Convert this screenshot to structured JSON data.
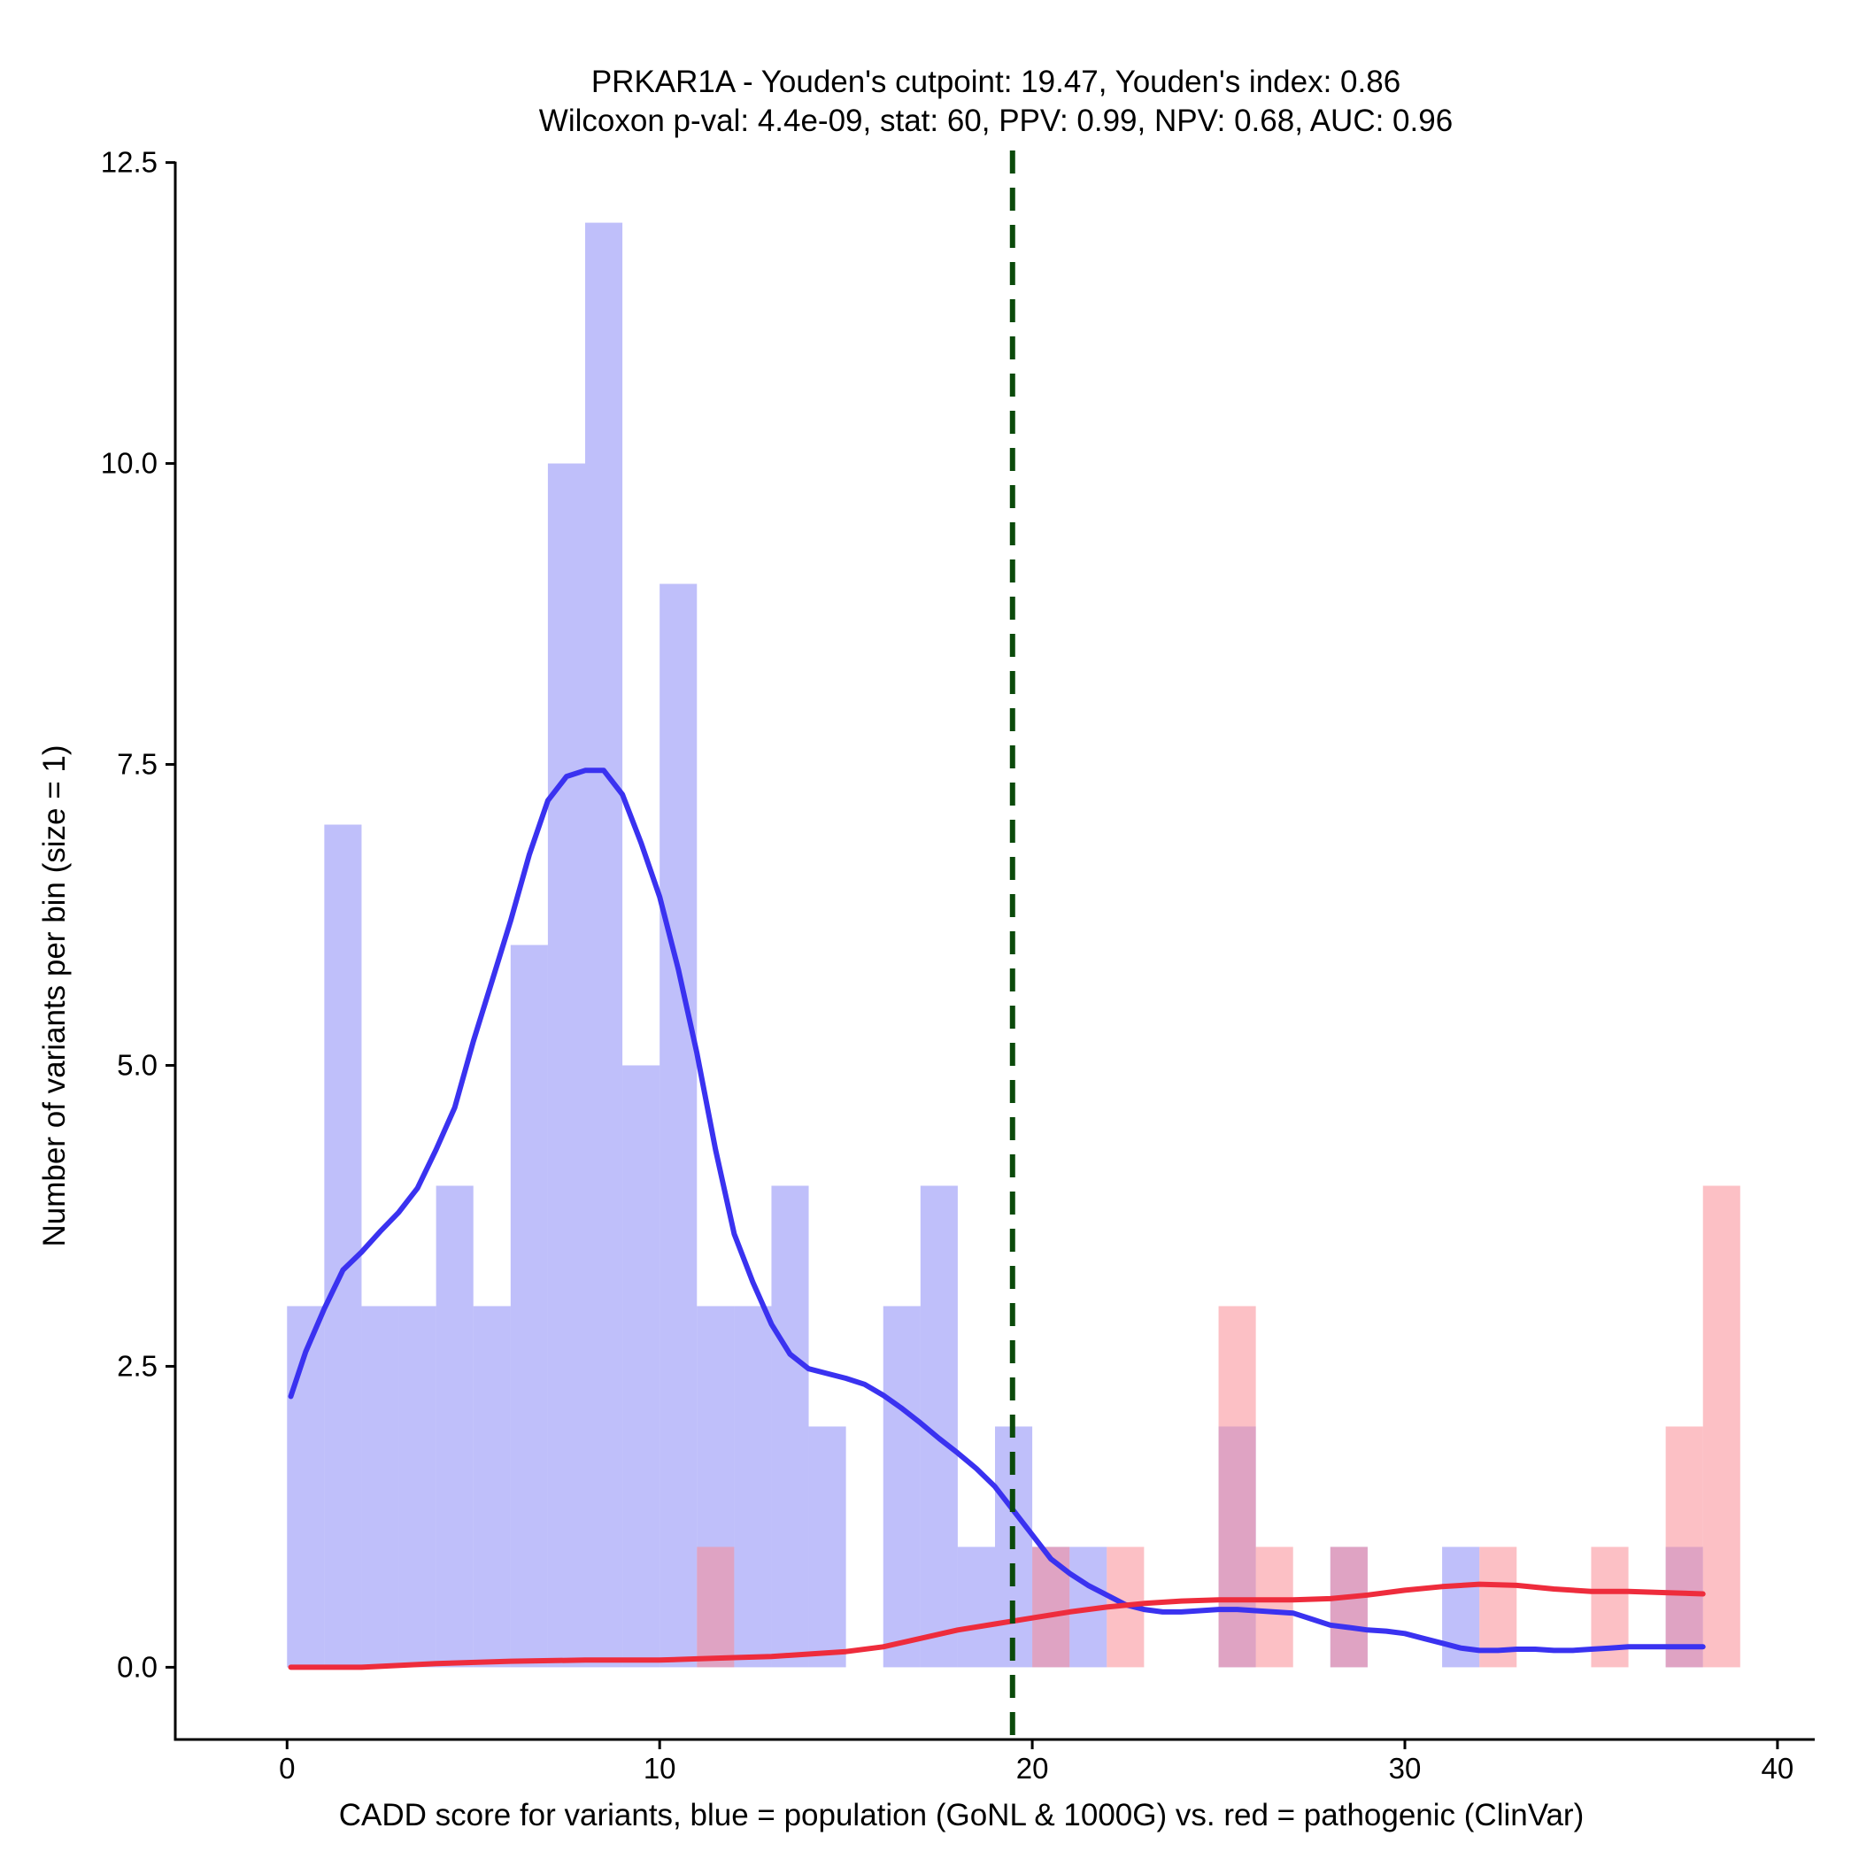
{
  "chart_data": {
    "type": "bar",
    "title": "PRKAR1A - Youden's cutpoint: 19.47, Youden's index: 0.86",
    "subtitle": "Wilcoxon p-val: 4.4e-09, stat: 60, PPV: 0.99, NPV: 0.68, AUC: 0.96",
    "xlabel": "CADD score for variants, blue = population (GoNL & 1000G) vs. red = pathogenic (ClinVar)",
    "ylabel": "Number of variants per bin (size = 1)",
    "xlim": [
      -3,
      41
    ],
    "ylim": [
      -0.6,
      12.6
    ],
    "x_ticks": [
      0,
      10,
      20,
      30,
      40
    ],
    "x_tick_labels": [
      "0",
      "10",
      "20",
      "30",
      "40"
    ],
    "y_ticks": [
      0,
      2.5,
      5,
      7.5,
      10,
      12.5
    ],
    "y_tick_labels": [
      "0.0",
      "2.5",
      "5.0",
      "7.5",
      "10.0",
      "12.5"
    ],
    "cutpoint": 19.47,
    "bin_size": 1,
    "series": [
      {
        "name": "population (GoNL & 1000G)",
        "color": "#8080f5",
        "bins": [
          {
            "start": 0,
            "count": 3
          },
          {
            "start": 1,
            "count": 7
          },
          {
            "start": 2,
            "count": 3
          },
          {
            "start": 3,
            "count": 3
          },
          {
            "start": 4,
            "count": 4
          },
          {
            "start": 5,
            "count": 3
          },
          {
            "start": 6,
            "count": 6
          },
          {
            "start": 7,
            "count": 10
          },
          {
            "start": 8,
            "count": 12
          },
          {
            "start": 9,
            "count": 5
          },
          {
            "start": 10,
            "count": 9
          },
          {
            "start": 11,
            "count": 3
          },
          {
            "start": 12,
            "count": 3
          },
          {
            "start": 13,
            "count": 4
          },
          {
            "start": 14,
            "count": 2
          },
          {
            "start": 16,
            "count": 3
          },
          {
            "start": 17,
            "count": 4
          },
          {
            "start": 18,
            "count": 1
          },
          {
            "start": 19,
            "count": 2
          },
          {
            "start": 20,
            "count": 1
          },
          {
            "start": 21,
            "count": 1
          },
          {
            "start": 25,
            "count": 2
          },
          {
            "start": 28,
            "count": 1
          },
          {
            "start": 31,
            "count": 1
          },
          {
            "start": 37,
            "count": 1
          }
        ],
        "density": [
          [
            0.1,
            2.25
          ],
          [
            0.5,
            2.62
          ],
          [
            1,
            2.98
          ],
          [
            1.5,
            3.3
          ],
          [
            2,
            3.45
          ],
          [
            2.5,
            3.62
          ],
          [
            3,
            3.78
          ],
          [
            3.5,
            3.98
          ],
          [
            4,
            4.3
          ],
          [
            4.5,
            4.65
          ],
          [
            5,
            5.2
          ],
          [
            5.5,
            5.7
          ],
          [
            6,
            6.2
          ],
          [
            6.5,
            6.75
          ],
          [
            7,
            7.2
          ],
          [
            7.5,
            7.4
          ],
          [
            8,
            7.45
          ],
          [
            8.5,
            7.45
          ],
          [
            9,
            7.25
          ],
          [
            9.5,
            6.85
          ],
          [
            10,
            6.4
          ],
          [
            10.5,
            5.8
          ],
          [
            11,
            5.1
          ],
          [
            11.5,
            4.3
          ],
          [
            12,
            3.6
          ],
          [
            12.5,
            3.2
          ],
          [
            13,
            2.85
          ],
          [
            13.5,
            2.6
          ],
          [
            14,
            2.48
          ],
          [
            14.5,
            2.44
          ],
          [
            15,
            2.4
          ],
          [
            15.5,
            2.35
          ],
          [
            16,
            2.26
          ],
          [
            16.5,
            2.15
          ],
          [
            17,
            2.03
          ],
          [
            17.5,
            1.9
          ],
          [
            18,
            1.78
          ],
          [
            18.5,
            1.65
          ],
          [
            19,
            1.5
          ],
          [
            19.5,
            1.3
          ],
          [
            20,
            1.1
          ],
          [
            20.5,
            0.9
          ],
          [
            21,
            0.78
          ],
          [
            21.5,
            0.68
          ],
          [
            22,
            0.6
          ],
          [
            22.5,
            0.52
          ],
          [
            23,
            0.48
          ],
          [
            23.5,
            0.46
          ],
          [
            24,
            0.46
          ],
          [
            24.5,
            0.47
          ],
          [
            25,
            0.48
          ],
          [
            25.5,
            0.48
          ],
          [
            26,
            0.47
          ],
          [
            26.5,
            0.46
          ],
          [
            27,
            0.45
          ],
          [
            27.5,
            0.4
          ],
          [
            28,
            0.35
          ],
          [
            28.5,
            0.33
          ],
          [
            29,
            0.31
          ],
          [
            29.5,
            0.3
          ],
          [
            30,
            0.28
          ],
          [
            30.5,
            0.24
          ],
          [
            31,
            0.2
          ],
          [
            31.5,
            0.16
          ],
          [
            32,
            0.14
          ],
          [
            32.5,
            0.14
          ],
          [
            33,
            0.15
          ],
          [
            33.5,
            0.15
          ],
          [
            34,
            0.14
          ],
          [
            34.5,
            0.14
          ],
          [
            35,
            0.15
          ],
          [
            35.5,
            0.16
          ],
          [
            36,
            0.17
          ],
          [
            36.5,
            0.17
          ],
          [
            37,
            0.17
          ],
          [
            37.5,
            0.17
          ],
          [
            38,
            0.17
          ]
        ]
      },
      {
        "name": "pathogenic (ClinVar)",
        "color": "#fa8c96",
        "bins": [
          {
            "start": 11,
            "count": 1
          },
          {
            "start": 20,
            "count": 1
          },
          {
            "start": 22,
            "count": 1
          },
          {
            "start": 25,
            "count": 3
          },
          {
            "start": 26,
            "count": 1
          },
          {
            "start": 28,
            "count": 1
          },
          {
            "start": 32,
            "count": 1
          },
          {
            "start": 35,
            "count": 1
          },
          {
            "start": 37,
            "count": 2
          },
          {
            "start": 38,
            "count": 4
          }
        ],
        "density": [
          [
            0.1,
            0.0
          ],
          [
            2,
            0.0
          ],
          [
            4,
            0.03
          ],
          [
            6,
            0.05
          ],
          [
            8,
            0.06
          ],
          [
            10,
            0.06
          ],
          [
            11,
            0.07
          ],
          [
            12,
            0.08
          ],
          [
            13,
            0.09
          ],
          [
            14,
            0.11
          ],
          [
            15,
            0.13
          ],
          [
            16,
            0.17
          ],
          [
            17,
            0.24
          ],
          [
            18,
            0.31
          ],
          [
            19,
            0.36
          ],
          [
            20,
            0.41
          ],
          [
            21,
            0.46
          ],
          [
            22,
            0.5
          ],
          [
            23,
            0.53
          ],
          [
            24,
            0.55
          ],
          [
            25,
            0.56
          ],
          [
            26,
            0.56
          ],
          [
            27,
            0.56
          ],
          [
            28,
            0.57
          ],
          [
            29,
            0.6
          ],
          [
            30,
            0.64
          ],
          [
            31,
            0.67
          ],
          [
            32,
            0.69
          ],
          [
            33,
            0.68
          ],
          [
            34,
            0.65
          ],
          [
            35,
            0.63
          ],
          [
            36,
            0.63
          ],
          [
            37,
            0.62
          ],
          [
            38,
            0.61
          ]
        ]
      }
    ]
  }
}
